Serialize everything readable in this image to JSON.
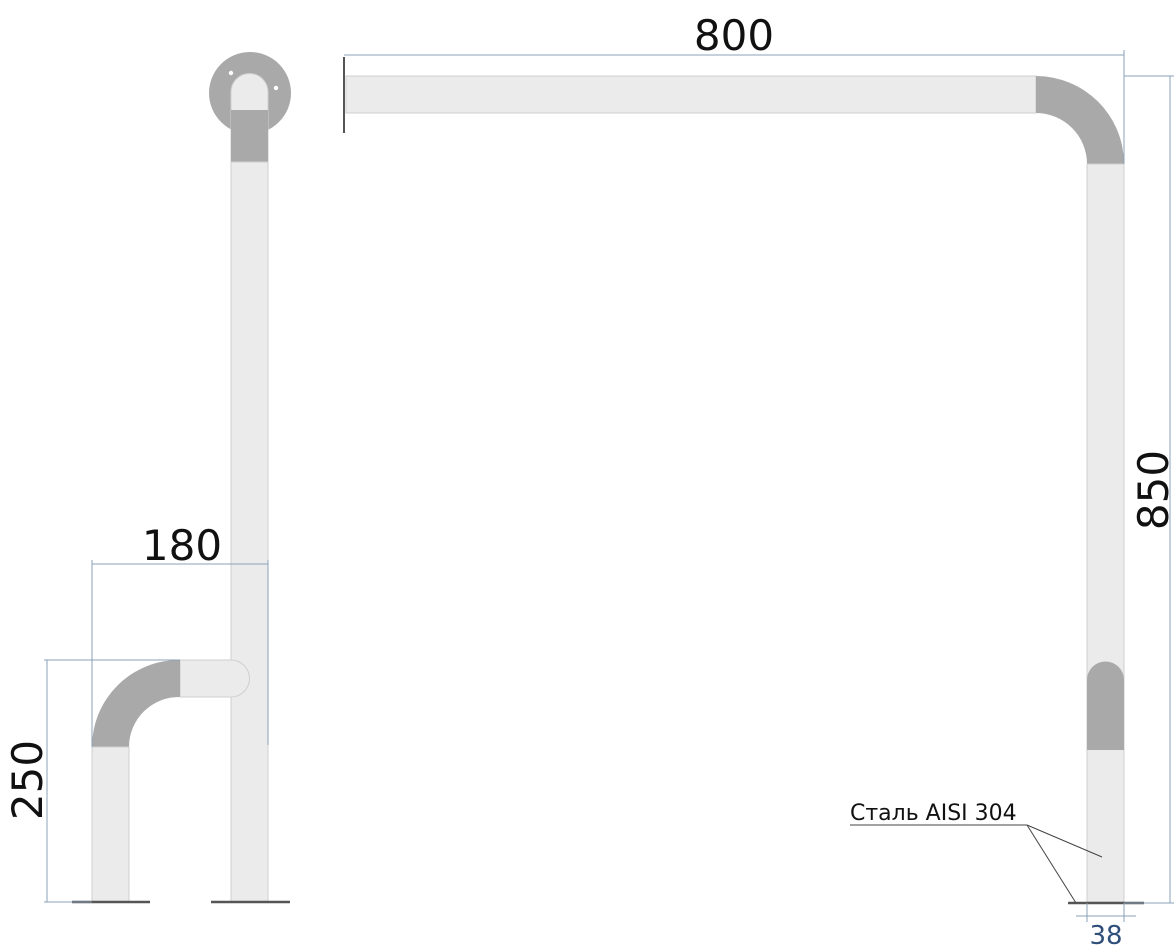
{
  "dimensions": {
    "width_top": "800",
    "height_right": "850",
    "depth_left": "180",
    "height_left": "250",
    "tube_diameter": "38"
  },
  "material_note": "Сталь AISI 304",
  "colors": {
    "tube_fill": "#ebebeb",
    "tube_outline": "#cfcfcf",
    "bend_fill": "#a9a9a9",
    "dim_line": "#8aa0b8",
    "dim_text_small": "#2f4f7a",
    "base_plate": "#555555"
  }
}
